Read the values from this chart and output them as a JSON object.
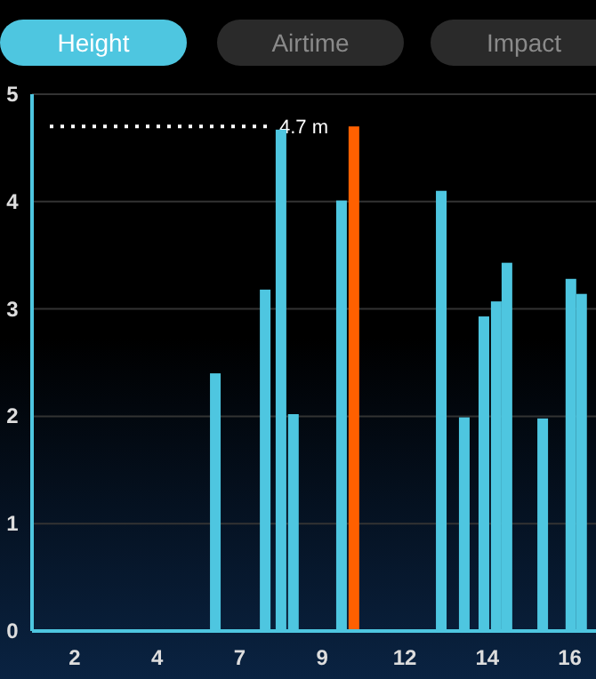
{
  "chart_data": {
    "type": "bar",
    "title": "Height",
    "annotations": [
      "Airtime",
      "Impact"
    ],
    "x": [
      6.09,
      7.54,
      8.0,
      8.36,
      9.76,
      10.12,
      12.66,
      13.33,
      13.9,
      14.26,
      14.57,
      15.61,
      16.43,
      16.74
    ],
    "values": [
      2.4,
      3.18,
      4.67,
      2.02,
      4.01,
      4.7,
      4.1,
      1.99,
      2.93,
      3.07,
      3.43,
      1.98,
      3.28,
      3.14
    ],
    "colors": [
      "#4ec6e0",
      "#4ec6e0",
      "#4ec6e0",
      "#4ec6e0",
      "#4ec6e0",
      "#ff6000",
      "#4ec6e0",
      "#4ec6e0",
      "#4ec6e0",
      "#4ec6e0",
      "#4ec6e0",
      "#4ec6e0",
      "#4ec6e0",
      "#4ec6e0"
    ],
    "xlim": [
      0.76,
      17.16
    ],
    "xticks": [
      {
        "value": 2,
        "label": "2"
      },
      {
        "value": 4.4,
        "label": "4"
      },
      {
        "value": 6.8,
        "label": "7"
      },
      {
        "value": 9.2,
        "label": "9"
      },
      {
        "value": 11.6,
        "label": "12"
      },
      {
        "value": 14,
        "label": "14"
      },
      {
        "value": 16.4,
        "label": "16"
      }
    ],
    "ylim": [
      0,
      5
    ],
    "yticks": [
      0,
      1,
      2,
      3,
      4,
      5
    ],
    "grid": "y",
    "ref_lines": [
      {
        "axis": "y",
        "value": 4.7,
        "label": "4.7 m",
        "color": "#ffffff",
        "line_style": "dotted"
      }
    ]
  }
}
